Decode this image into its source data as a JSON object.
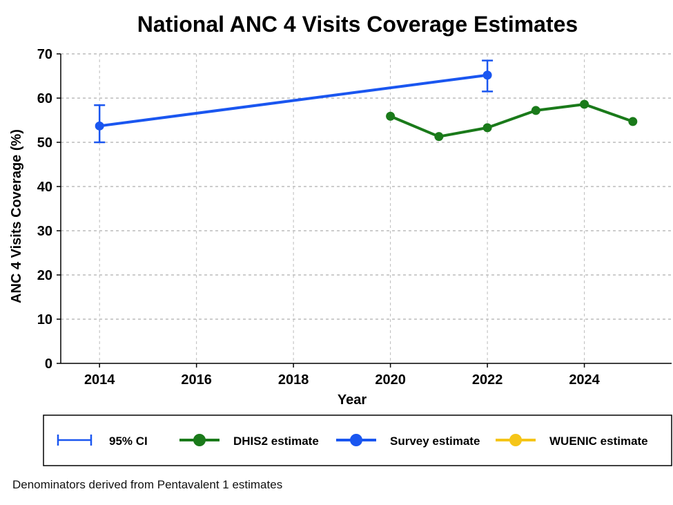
{
  "chart_data": {
    "type": "line",
    "title": "National ANC 4 Visits Coverage Estimates",
    "xlabel": "Year",
    "ylabel": "ANC 4 Visits Coverage (%)",
    "xlim": [
      2013.2,
      2025.8
    ],
    "ylim": [
      0,
      70
    ],
    "x_ticks": [
      2014,
      2016,
      2018,
      2020,
      2022,
      2024
    ],
    "y_ticks": [
      0,
      10,
      20,
      30,
      40,
      50,
      60,
      70
    ],
    "grid": true,
    "series": [
      {
        "name": "DHIS2 estimate",
        "color": "#1a7a1a",
        "points": [
          {
            "x": 2020,
            "y": 55.9
          },
          {
            "x": 2021,
            "y": 51.3
          },
          {
            "x": 2022,
            "y": 53.3
          },
          {
            "x": 2023,
            "y": 57.2
          },
          {
            "x": 2024,
            "y": 58.6
          },
          {
            "x": 2025,
            "y": 54.7
          }
        ]
      },
      {
        "name": "Survey estimate",
        "color": "#1a56f0",
        "points": [
          {
            "x": 2014,
            "y": 53.7,
            "ci_low": 50.0,
            "ci_high": 58.4
          },
          {
            "x": 2022,
            "y": 65.2,
            "ci_low": 61.5,
            "ci_high": 68.5
          }
        ]
      },
      {
        "name": "WUENIC estimate",
        "color": "#f5c518",
        "points": []
      }
    ],
    "legend": {
      "placement": "bottom",
      "items": [
        {
          "label": "95% CI",
          "kind": "errorbar",
          "color": "#1a56f0"
        },
        {
          "label": "DHIS2 estimate",
          "kind": "line-marker",
          "color": "#1a7a1a"
        },
        {
          "label": "Survey estimate",
          "kind": "line-marker",
          "color": "#1a56f0"
        },
        {
          "label": "WUENIC estimate",
          "kind": "line-marker",
          "color": "#f5c518"
        }
      ]
    }
  },
  "note": "Denominators derived from Pentavalent 1 estimates"
}
